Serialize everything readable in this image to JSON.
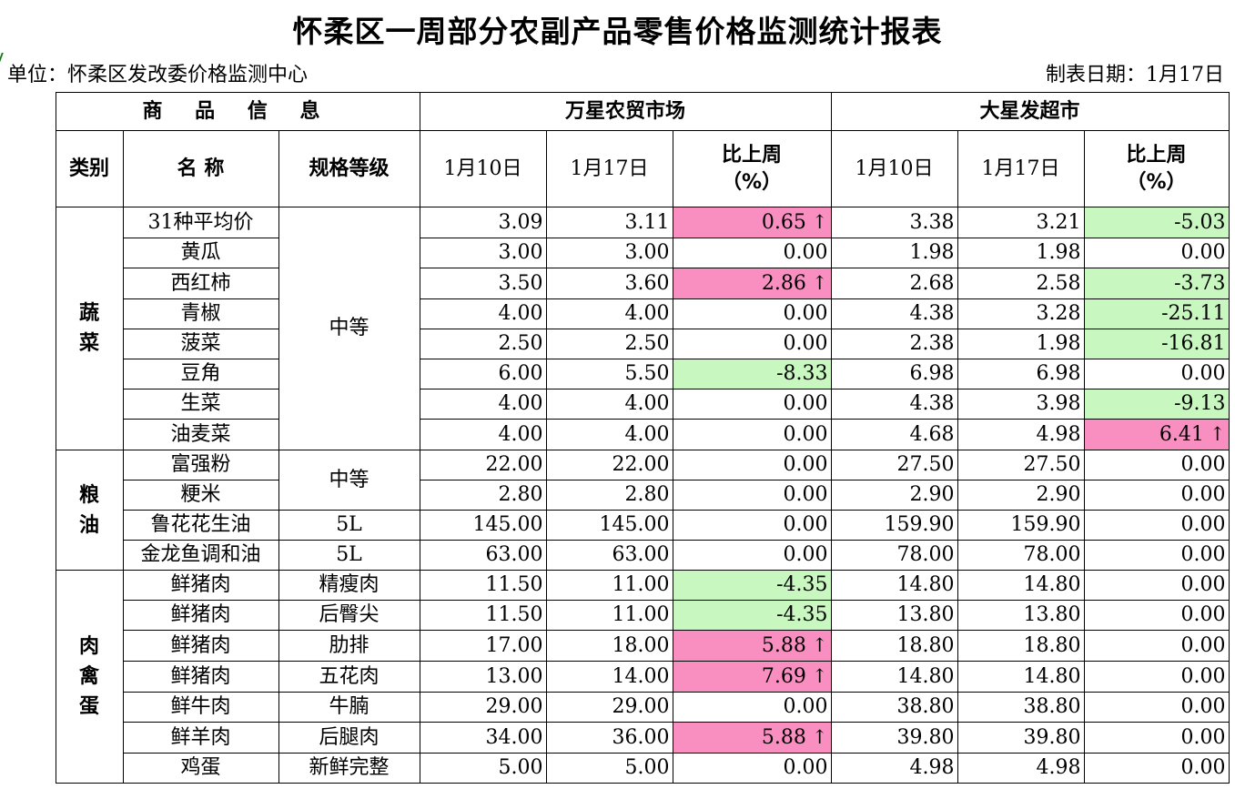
{
  "title": "怀柔区一周部分农副产品零售价格监测统计报表",
  "unit": "单位：怀柔区发改委价格监测中心",
  "date": "制表日期：1月17日",
  "header": {
    "info": "商 品 信 息",
    "market1": "万星农贸市场",
    "market2": "大星发超市",
    "category": "类别",
    "name": "名 称",
    "spec": "规格等级",
    "date1": "1月10日",
    "date2": "1月17日",
    "change_line1": "比上周",
    "change_line2": "（%）"
  },
  "up_arrow": "↑",
  "colors": {
    "up": "#f98fc0",
    "down": "#c8f8c0"
  },
  "categories": [
    {
      "label": "蔬菜",
      "rows": [
        {
          "name": "31种平均价",
          "spec": "中等",
          "m1_d1": "3.09",
          "m1_d2": "3.11",
          "m1_chg": "0.65",
          "m1_dir": "up",
          "m2_d1": "3.38",
          "m2_d2": "3.21",
          "m2_chg": "-5.03",
          "m2_dir": "down"
        },
        {
          "name": "黄瓜",
          "m1_d1": "3.00",
          "m1_d2": "3.00",
          "m1_chg": "0.00",
          "m1_dir": "",
          "m2_d1": "1.98",
          "m2_d2": "1.98",
          "m2_chg": "0.00",
          "m2_dir": ""
        },
        {
          "name": "西红柿",
          "m1_d1": "3.50",
          "m1_d2": "3.60",
          "m1_chg": "2.86",
          "m1_dir": "up",
          "m2_d1": "2.68",
          "m2_d2": "2.58",
          "m2_chg": "-3.73",
          "m2_dir": "down"
        },
        {
          "name": "青椒",
          "m1_d1": "4.00",
          "m1_d2": "4.00",
          "m1_chg": "0.00",
          "m1_dir": "",
          "m2_d1": "4.38",
          "m2_d2": "3.28",
          "m2_chg": "-25.11",
          "m2_dir": "down"
        },
        {
          "name": "菠菜",
          "m1_d1": "2.50",
          "m1_d2": "2.50",
          "m1_chg": "0.00",
          "m1_dir": "",
          "m2_d1": "2.38",
          "m2_d2": "1.98",
          "m2_chg": "-16.81",
          "m2_dir": "down"
        },
        {
          "name": "豆角",
          "m1_d1": "6.00",
          "m1_d2": "5.50",
          "m1_chg": "-8.33",
          "m1_dir": "down",
          "m2_d1": "6.98",
          "m2_d2": "6.98",
          "m2_chg": "0.00",
          "m2_dir": ""
        },
        {
          "name": "生菜",
          "m1_d1": "4.00",
          "m1_d2": "4.00",
          "m1_chg": "0.00",
          "m1_dir": "",
          "m2_d1": "4.38",
          "m2_d2": "3.98",
          "m2_chg": "-9.13",
          "m2_dir": "down"
        },
        {
          "name": "油麦菜",
          "m1_d1": "4.00",
          "m1_d2": "4.00",
          "m1_chg": "0.00",
          "m1_dir": "",
          "m2_d1": "4.68",
          "m2_d2": "4.98",
          "m2_chg": "6.41",
          "m2_dir": "up"
        }
      ]
    },
    {
      "label": "粮油",
      "rows": [
        {
          "name": "富强粉",
          "spec": "中等",
          "m1_d1": "22.00",
          "m1_d2": "22.00",
          "m1_chg": "0.00",
          "m1_dir": "",
          "m2_d1": "27.50",
          "m2_d2": "27.50",
          "m2_chg": "0.00",
          "m2_dir": ""
        },
        {
          "name": "粳米",
          "m1_d1": "2.80",
          "m1_d2": "2.80",
          "m1_chg": "0.00",
          "m1_dir": "",
          "m2_d1": "2.90",
          "m2_d2": "2.90",
          "m2_chg": "0.00",
          "m2_dir": ""
        },
        {
          "name": "鲁花花生油",
          "spec": "5L",
          "m1_d1": "145.00",
          "m1_d2": "145.00",
          "m1_chg": "0.00",
          "m1_dir": "",
          "m2_d1": "159.90",
          "m2_d2": "159.90",
          "m2_chg": "0.00",
          "m2_dir": ""
        },
        {
          "name": "金龙鱼调和油",
          "spec": "5L",
          "m1_d1": "63.00",
          "m1_d2": "63.00",
          "m1_chg": "0.00",
          "m1_dir": "",
          "m2_d1": "78.00",
          "m2_d2": "78.00",
          "m2_chg": "0.00",
          "m2_dir": ""
        }
      ]
    },
    {
      "label": "肉禽蛋",
      "rows": [
        {
          "name": "鲜猪肉",
          "spec": "精瘦肉",
          "m1_d1": "11.50",
          "m1_d2": "11.00",
          "m1_chg": "-4.35",
          "m1_dir": "down",
          "m2_d1": "14.80",
          "m2_d2": "14.80",
          "m2_chg": "0.00",
          "m2_dir": ""
        },
        {
          "name": "鲜猪肉",
          "spec": "后臀尖",
          "m1_d1": "11.50",
          "m1_d2": "11.00",
          "m1_chg": "-4.35",
          "m1_dir": "down",
          "m2_d1": "13.80",
          "m2_d2": "13.80",
          "m2_chg": "0.00",
          "m2_dir": ""
        },
        {
          "name": "鲜猪肉",
          "spec": "肋排",
          "m1_d1": "17.00",
          "m1_d2": "18.00",
          "m1_chg": "5.88",
          "m1_dir": "up",
          "m2_d1": "18.80",
          "m2_d2": "18.80",
          "m2_chg": "0.00",
          "m2_dir": ""
        },
        {
          "name": "鲜猪肉",
          "spec": "五花肉",
          "m1_d1": "13.00",
          "m1_d2": "14.00",
          "m1_chg": "7.69",
          "m1_dir": "up",
          "m2_d1": "14.80",
          "m2_d2": "14.80",
          "m2_chg": "0.00",
          "m2_dir": ""
        },
        {
          "name": "鲜牛肉",
          "spec": "牛腩",
          "m1_d1": "29.00",
          "m1_d2": "29.00",
          "m1_chg": "0.00",
          "m1_dir": "",
          "m2_d1": "38.80",
          "m2_d2": "38.80",
          "m2_chg": "0.00",
          "m2_dir": ""
        },
        {
          "name": "鲜羊肉",
          "spec": "后腿肉",
          "m1_d1": "34.00",
          "m1_d2": "36.00",
          "m1_chg": "5.88",
          "m1_dir": "up",
          "m2_d1": "39.80",
          "m2_d2": "39.80",
          "m2_chg": "0.00",
          "m2_dir": ""
        },
        {
          "name": "鸡蛋",
          "spec": "新鲜完整",
          "m1_d1": "5.00",
          "m1_d2": "5.00",
          "m1_chg": "0.00",
          "m1_dir": "",
          "m2_d1": "4.98",
          "m2_d2": "4.98",
          "m2_chg": "0.00",
          "m2_dir": ""
        }
      ]
    }
  ]
}
